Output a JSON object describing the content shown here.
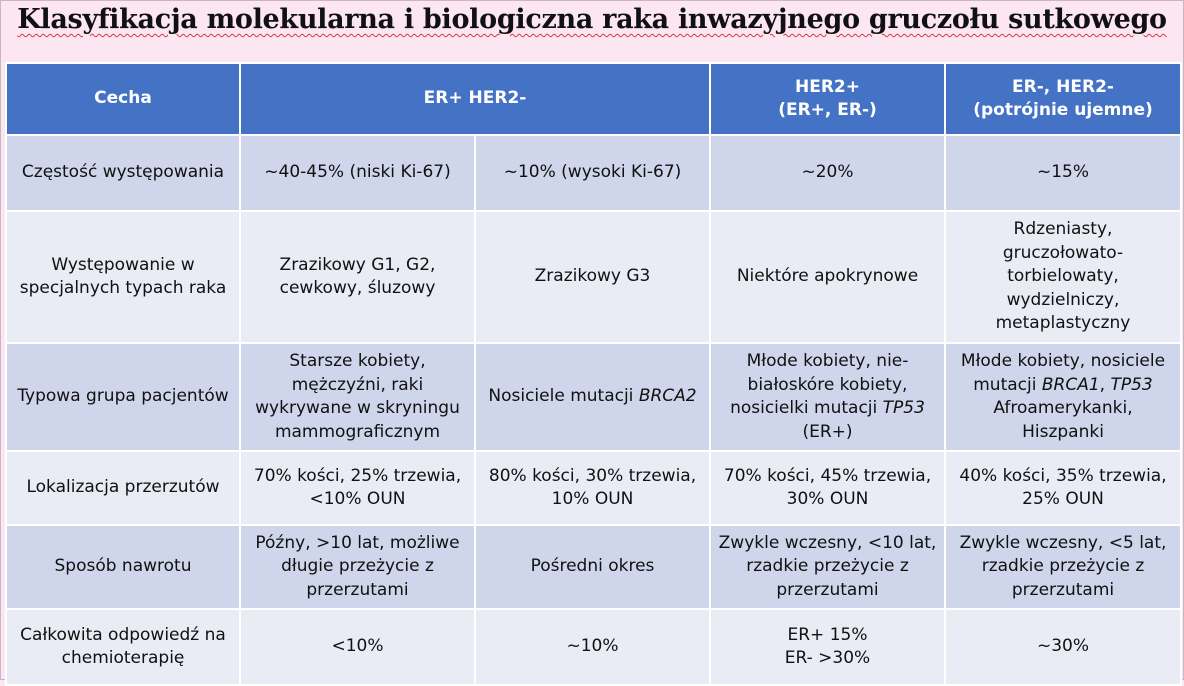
{
  "title": "Klasyfikacja molekularna i biologiczna raka inwazyjnego gruczołu sutkowego",
  "header": {
    "col1": "Cecha",
    "col2": "ER+ HER2-",
    "col3_line1": "HER2+",
    "col3_line2": "(ER+, ER-)",
    "col4_line1": "ER-, HER2-",
    "col4_line2": "(potrójnie ujemne)"
  },
  "rows": {
    "r1": {
      "feature": "Częstość występowania",
      "a": "~40-45% (niski Ki-67)",
      "b": "~10% (wysoki Ki-67)",
      "c": "~20%",
      "d": "~15%"
    },
    "r2": {
      "feature": "Występowanie w specjalnych typach raka",
      "a": "Zrazikowy G1, G2, cewkowy, śluzowy",
      "b": "Zrazikowy G3",
      "c": "Niektóre apokrynowe",
      "d": "Rdzeniasty, gruczołowato-torbielowaty, wydzielniczy, metaplastyczny"
    },
    "r3": {
      "feature": "Typowa grupa pacjentów",
      "a": "Starsze kobiety, mężczyźni, raki wykrywane w skryningu mammograficznym",
      "b_pre": "Nosiciele mutacji ",
      "b_it": "BRCA2",
      "c_pre": "Młode kobiety, nie-białoskóre kobiety, nosicielki mutacji ",
      "c_it": "TP53",
      "c_post": " (ER+)",
      "d_pre": "Młode kobiety, nosiciele mutacji ",
      "d_it1": "BRCA1",
      "d_sep": ", ",
      "d_it2": "TP53",
      "d_post": " Afroamerykanki, Hiszpanki"
    },
    "r4": {
      "feature": "Lokalizacja przerzutów",
      "a": "70% kości, 25% trzewia, <10% OUN",
      "b": "80% kości, 30% trzewia, 10% OUN",
      "c": "70% kości, 45% trzewia, 30% OUN",
      "d": "40% kości, 35% trzewia, 25% OUN"
    },
    "r5": {
      "feature": "Sposób nawrotu",
      "a": "Późny, >10 lat, możliwe długie przeżycie z przerzutami",
      "b": "Pośredni okres",
      "c": "Zwykle wczesny, <10 lat, rzadkie przeżycie z przerzutami",
      "d": "Zwykle wczesny, <5 lat, rzadkie przeżycie z przerzutami"
    },
    "r6": {
      "feature": "Całkowita odpowiedź na chemioterapię",
      "a": "<10%",
      "b": "~10%",
      "c_line1": "ER+ 15%",
      "c_line2": "ER- >30%",
      "d": "~30%"
    }
  }
}
